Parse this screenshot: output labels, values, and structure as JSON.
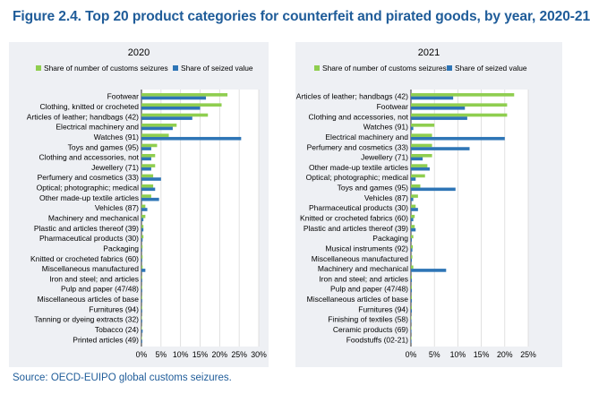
{
  "figure": {
    "title": "Figure 2.4. Top 20 product categories for counterfeit and pirated goods, by year, 2020-21",
    "source": "Source: OECD-EUIPO global customs seizures."
  },
  "colors": {
    "seizures": "#8fce4f",
    "value": "#2e75b6",
    "panel": "#eef0f4",
    "title": "#1f5c99"
  },
  "chart_data": [
    {
      "type": "bar",
      "orientation": "horizontal",
      "title": "2020",
      "xlim": [
        0,
        30
      ],
      "ticks": [
        0,
        5,
        10,
        15,
        20,
        25,
        30
      ],
      "tick_labels": [
        "0%",
        "5%",
        "10%",
        "15%",
        "20%",
        "25%",
        "30%"
      ],
      "legend_position": "top",
      "categories": [
        "Footwear",
        "Clothing, knitted or crocheted",
        "Articles of leather; handbags (42)",
        "Electrical machinery and",
        "Watches (91)",
        "Toys and games (95)",
        "Clothing and accessories, not",
        "Jewellery (71)",
        "Perfumery and cosmetics (33)",
        "Optical; photographic; medical",
        "Other made-up textile articles",
        "Vehicles (87)",
        "Machinery and mechanical",
        "Plastic and articles thereof (39)",
        "Pharmaceutical products (30)",
        "Packaging",
        "Knitted or crocheted fabrics (60)",
        "Miscellaneous manufactured",
        "Iron and steel; and articles",
        "Pulp and paper (47/48)",
        "Miscellaneous articles of base",
        "Furnitures (94)",
        "Tanning or dyeing extracts (32)",
        "Tobacco (24)",
        "Printed articles (49)"
      ],
      "series": [
        {
          "name": "Share of number of customs seizures",
          "values": [
            22,
            20.5,
            17,
            9,
            7,
            4,
            3.5,
            3.5,
            3,
            3,
            2.5,
            1,
            1,
            0.5,
            0.5,
            0.3,
            0.3,
            0.3,
            0.2,
            0.2,
            0.2,
            0.2,
            0.1,
            0.1,
            0.1
          ]
        },
        {
          "name": "Share of seized value",
          "values": [
            16.5,
            15,
            13,
            8,
            25.5,
            2.5,
            2.5,
            2.5,
            5,
            3.5,
            4.5,
            1.5,
            0.5,
            0.5,
            0.3,
            0.2,
            0.2,
            1,
            0.2,
            0.2,
            0.2,
            0.2,
            0.2,
            0.3,
            0.2
          ]
        }
      ]
    },
    {
      "type": "bar",
      "orientation": "horizontal",
      "title": "2021",
      "xlim": [
        0,
        25
      ],
      "ticks": [
        0,
        5,
        10,
        15,
        20,
        25
      ],
      "tick_labels": [
        "0%",
        "5%",
        "10%",
        "15%",
        "20%",
        "25%"
      ],
      "legend_position": "top",
      "categories": [
        "Articles of leather; handbags (42)",
        "Footwear",
        "Clothing and accessories, not",
        "Watches (91)",
        "Electrical machinery and",
        "Perfumery and cosmetics (33)",
        "Jewellery (71)",
        "Other made-up textile articles",
        "Optical; photographic; medical",
        "Toys and games (95)",
        "Vehicles (87)",
        "Pharmaceutical products (30)",
        "Knitted or crocheted fabrics (60)",
        "Plastic and articles thereof (39)",
        "Packaging",
        "Musical instruments (92)",
        "Miscellaneous manufactured",
        "Machinery and mechanical",
        "Iron and steel; and articles",
        "Pulp and paper (47/48)",
        "Miscellaneous articles of base",
        "Furnitures (94)",
        "Finishing of textiles (58)",
        "Ceramic products (69)",
        "Foodstuffs (02-21)"
      ],
      "series": [
        {
          "name": "Share of number of customs seizures",
          "values": [
            22,
            20.5,
            20.5,
            5,
            4.5,
            4.5,
            4.5,
            3.5,
            3,
            2,
            1.5,
            1,
            0.8,
            0.8,
            0.5,
            0.4,
            0.3,
            0.5,
            0.2,
            0.2,
            0.2,
            0.2,
            0.1,
            0.1,
            0.1
          ]
        },
        {
          "name": "Share of seized value",
          "values": [
            9,
            11.5,
            12,
            0.5,
            20,
            12.5,
            2.5,
            4,
            1,
            9.5,
            0.5,
            1.5,
            0.5,
            1,
            0.2,
            0.3,
            0.2,
            7.5,
            0.2,
            0.2,
            0.2,
            0.2,
            0.1,
            0.1,
            0.1
          ]
        }
      ]
    }
  ]
}
